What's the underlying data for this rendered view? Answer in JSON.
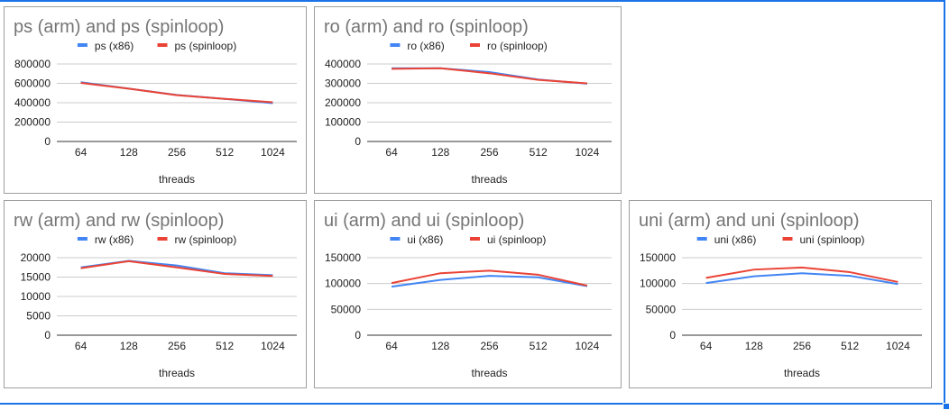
{
  "colors": {
    "x86": "#4285f4",
    "spinloop": "#ea4335",
    "title": "#757575",
    "grid": "#cccccc"
  },
  "chart_data": [
    {
      "type": "line",
      "title": "ps (arm) and ps (spinloop)",
      "xlabel": "threads",
      "ylabel": "",
      "categories": [
        "64",
        "128",
        "256",
        "512",
        "1024"
      ],
      "yticks": [
        "0",
        "200000",
        "400000",
        "600000",
        "800000"
      ],
      "ylim": [
        0,
        800000
      ],
      "legend": "top",
      "series": [
        {
          "name": "ps (x86)",
          "values": [
            612000,
            545000,
            480000,
            440000,
            395000
          ]
        },
        {
          "name": "ps (spinloop)",
          "values": [
            605000,
            545000,
            478000,
            440000,
            405000
          ]
        }
      ]
    },
    {
      "type": "line",
      "title": "ro (arm) and ro (spinloop)",
      "xlabel": "threads",
      "ylabel": "",
      "categories": [
        "64",
        "128",
        "256",
        "512",
        "1024"
      ],
      "yticks": [
        "0",
        "100000",
        "200000",
        "300000",
        "400000"
      ],
      "ylim": [
        0,
        400000
      ],
      "legend": "top",
      "series": [
        {
          "name": "ro (x86)",
          "values": [
            378000,
            378000,
            358000,
            320000,
            298000
          ]
        },
        {
          "name": "ro (spinloop)",
          "values": [
            375000,
            378000,
            352000,
            318000,
            300000
          ]
        }
      ]
    },
    {
      "type": "line",
      "title": "rw (arm) and rw (spinloop)",
      "xlabel": "threads",
      "ylabel": "",
      "categories": [
        "64",
        "128",
        "256",
        "512",
        "1024"
      ],
      "yticks": [
        "0",
        "5000",
        "10000",
        "15000",
        "20000"
      ],
      "ylim": [
        0,
        20000
      ],
      "legend": "top",
      "series": [
        {
          "name": "rw (x86)",
          "values": [
            17500,
            19200,
            18000,
            16000,
            15500
          ]
        },
        {
          "name": "rw (spinloop)",
          "values": [
            17300,
            19100,
            17500,
            15800,
            15300
          ]
        }
      ]
    },
    {
      "type": "line",
      "title": "ui (arm) and ui (spinloop)",
      "xlabel": "threads",
      "ylabel": "",
      "categories": [
        "64",
        "128",
        "256",
        "512",
        "1024"
      ],
      "yticks": [
        "0",
        "50000",
        "100000",
        "150000"
      ],
      "ylim": [
        0,
        150000
      ],
      "legend": "top",
      "series": [
        {
          "name": "ui (x86)",
          "values": [
            94000,
            107000,
            115000,
            112000,
            95000
          ]
        },
        {
          "name": "ui (spinloop)",
          "values": [
            101000,
            120000,
            125000,
            117000,
            96000
          ]
        }
      ]
    },
    {
      "type": "line",
      "title": "uni (arm) and uni (spinloop)",
      "xlabel": "threads",
      "ylabel": "",
      "categories": [
        "64",
        "128",
        "256",
        "512",
        "1024"
      ],
      "yticks": [
        "0",
        "50000",
        "100000",
        "150000"
      ],
      "ylim": [
        0,
        150000
      ],
      "legend": "top",
      "series": [
        {
          "name": "uni (x86)",
          "values": [
            101000,
            114000,
            120000,
            115000,
            99000
          ]
        },
        {
          "name": "uni (spinloop)",
          "values": [
            111000,
            127000,
            131000,
            122000,
            103000
          ]
        }
      ]
    }
  ]
}
